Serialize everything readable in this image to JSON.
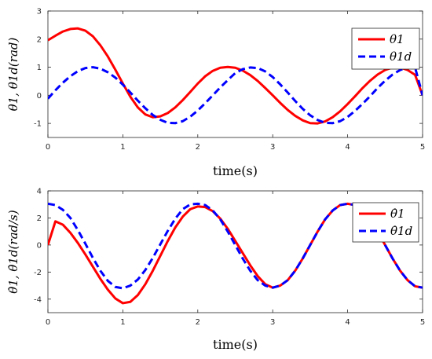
{
  "chart_data": [
    {
      "type": "line",
      "xlabel": "time(s)",
      "ylabel": "θ1, θ1d(rad)",
      "xlim": [
        0,
        5
      ],
      "ylim": [
        -1.5,
        3
      ],
      "xticks": [
        0,
        1,
        2,
        3,
        4,
        5
      ],
      "yticks": [
        -1,
        0,
        1,
        2,
        3
      ],
      "grid": false,
      "legend_position": "top-right",
      "x": [
        0.0,
        0.1,
        0.2,
        0.3,
        0.4,
        0.5,
        0.6,
        0.7,
        0.8,
        0.9,
        1.0,
        1.1,
        1.2,
        1.3,
        1.4,
        1.5,
        1.6,
        1.7,
        1.8,
        1.9,
        2.0,
        2.1,
        2.2,
        2.3,
        2.4,
        2.5,
        2.6,
        2.7,
        2.8,
        2.9,
        3.0,
        3.1,
        3.2,
        3.3,
        3.4,
        3.5,
        3.6,
        3.7,
        3.8,
        3.9,
        4.0,
        4.1,
        4.2,
        4.3,
        4.4,
        4.5,
        4.6,
        4.7,
        4.8,
        4.9,
        5.0
      ],
      "series": [
        {
          "name": "θ1",
          "color": "#ff0000",
          "style": "solid",
          "values": [
            1.96,
            2.12,
            2.27,
            2.36,
            2.38,
            2.3,
            2.1,
            1.78,
            1.38,
            0.91,
            0.42,
            -0.05,
            -0.43,
            -0.68,
            -0.78,
            -0.75,
            -0.63,
            -0.43,
            -0.17,
            0.12,
            0.42,
            0.68,
            0.87,
            0.98,
            1.01,
            0.98,
            0.88,
            0.72,
            0.51,
            0.26,
            0.0,
            -0.27,
            -0.52,
            -0.73,
            -0.89,
            -0.99,
            -1.0,
            -0.93,
            -0.78,
            -0.57,
            -0.31,
            -0.03,
            0.26,
            0.52,
            0.74,
            0.9,
            0.99,
            0.99,
            0.9,
            0.73,
            0.0
          ]
        },
        {
          "name": "θ1d",
          "color": "#0000ff",
          "style": "dashed",
          "values": [
            -0.12,
            0.18,
            0.45,
            0.68,
            0.86,
            0.97,
            1.0,
            0.95,
            0.82,
            0.63,
            0.38,
            0.1,
            -0.19,
            -0.46,
            -0.7,
            -0.87,
            -0.98,
            -0.99,
            -0.92,
            -0.76,
            -0.54,
            -0.28,
            0.0,
            0.28,
            0.54,
            0.79,
            0.93,
            0.99,
            0.97,
            0.85,
            0.65,
            0.39,
            0.1,
            -0.2,
            -0.48,
            -0.71,
            -0.88,
            -0.98,
            -0.99,
            -0.92,
            -0.77,
            -0.55,
            -0.3,
            -0.03,
            0.26,
            0.52,
            0.74,
            0.9,
            0.99,
            0.99,
            0.0
          ]
        }
      ]
    },
    {
      "type": "line",
      "xlabel": "time(s)",
      "ylabel": "θ̇1, θ̇1d(rad/s)",
      "xlim": [
        0,
        5
      ],
      "ylim": [
        -5,
        4
      ],
      "xticks": [
        0,
        1,
        2,
        3,
        4,
        5
      ],
      "yticks": [
        -4,
        -2,
        0,
        2,
        4
      ],
      "grid": false,
      "legend_position": "top-right",
      "x": [
        0.0,
        0.1,
        0.2,
        0.3,
        0.4,
        0.5,
        0.6,
        0.7,
        0.8,
        0.9,
        1.0,
        1.1,
        1.2,
        1.3,
        1.4,
        1.5,
        1.6,
        1.7,
        1.8,
        1.9,
        2.0,
        2.1,
        2.2,
        2.3,
        2.4,
        2.5,
        2.6,
        2.7,
        2.8,
        2.9,
        3.0,
        3.1,
        3.2,
        3.3,
        3.4,
        3.5,
        3.6,
        3.7,
        3.8,
        3.9,
        4.0,
        4.1,
        4.2,
        4.3,
        4.4,
        4.5,
        4.6,
        4.7,
        4.8,
        4.9,
        5.0
      ],
      "series": [
        {
          "name": "θ̇1",
          "color": "#ff0000",
          "style": "solid",
          "values": [
            0.0,
            1.75,
            1.5,
            0.9,
            0.15,
            -0.7,
            -1.6,
            -2.5,
            -3.3,
            -3.95,
            -4.3,
            -4.2,
            -3.7,
            -2.9,
            -1.9,
            -0.8,
            0.3,
            1.3,
            2.1,
            2.65,
            2.85,
            2.8,
            2.5,
            1.95,
            1.2,
            0.3,
            -0.6,
            -1.5,
            -2.3,
            -2.9,
            -3.15,
            -3.0,
            -2.6,
            -1.9,
            -1.0,
            0.0,
            1.0,
            1.9,
            2.55,
            2.95,
            3.05,
            2.95,
            2.55,
            1.9,
            1.0,
            0.0,
            -1.0,
            -1.9,
            -2.6,
            -3.05,
            -3.15
          ]
        },
        {
          "name": "θ̇1d",
          "color": "#0000ff",
          "style": "dashed",
          "values": [
            3.05,
            2.95,
            2.6,
            2.0,
            1.1,
            0.1,
            -0.95,
            -1.9,
            -2.65,
            -3.1,
            -3.2,
            -3.0,
            -2.55,
            -1.85,
            -0.95,
            0.05,
            1.05,
            1.95,
            2.65,
            3.0,
            3.05,
            2.95,
            2.55,
            1.9,
            1.0,
            0.0,
            -1.0,
            -1.9,
            -2.6,
            -3.0,
            -3.15,
            -3.0,
            -2.6,
            -1.9,
            -1.0,
            0.0,
            1.0,
            1.9,
            2.55,
            2.95,
            3.05,
            2.95,
            2.55,
            1.9,
            1.0,
            0.0,
            -1.0,
            -1.9,
            -2.6,
            -3.05,
            -3.15
          ]
        }
      ]
    }
  ]
}
